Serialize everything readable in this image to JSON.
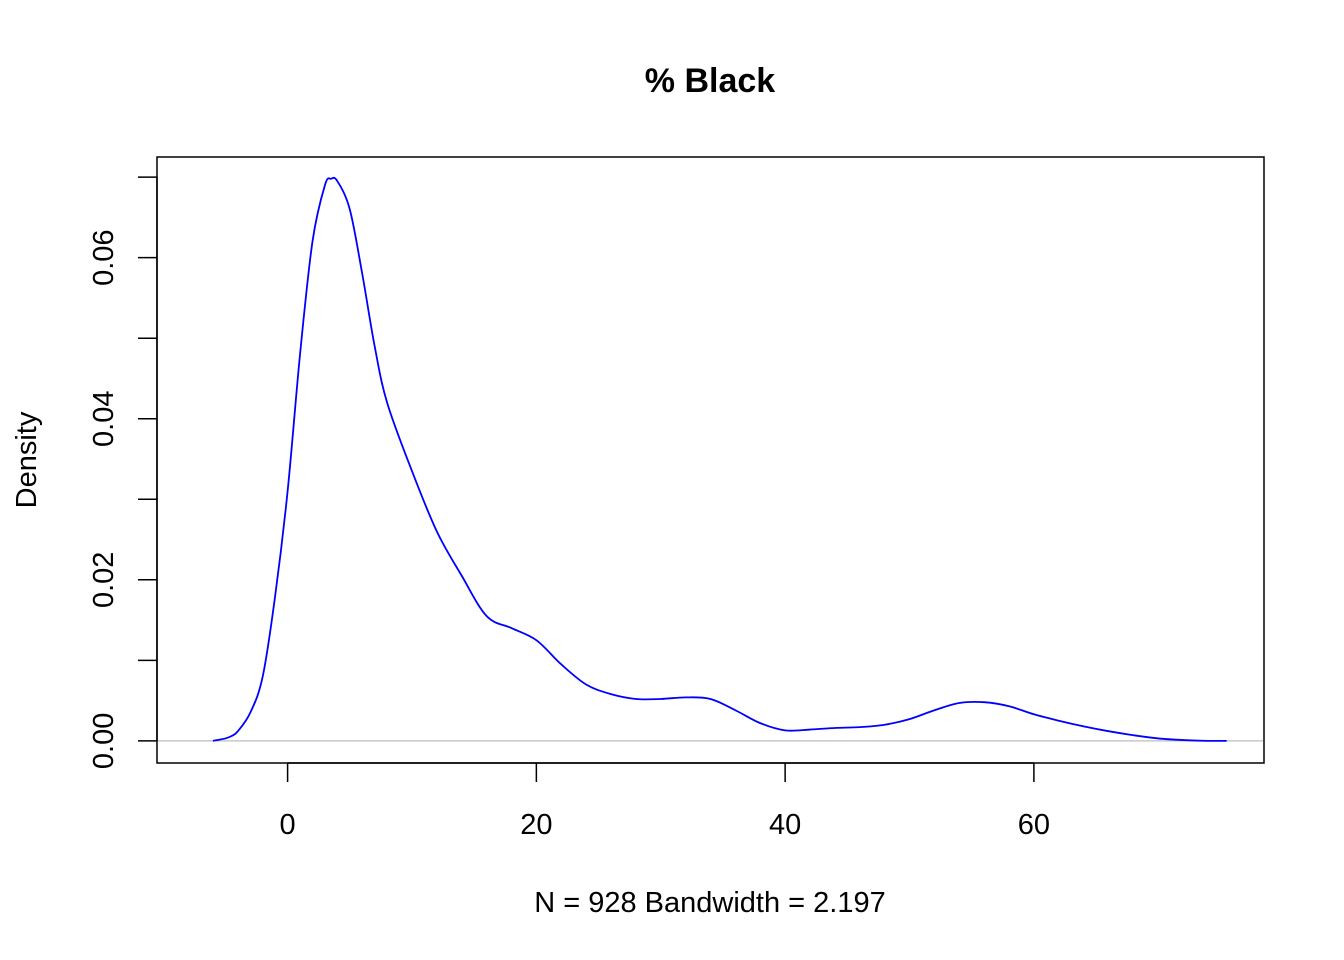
{
  "chart_data": {
    "type": "line",
    "title": "% Black",
    "xlabel": "N = 928   Bandwidth = 2.197",
    "ylabel": "Density",
    "xlim": [
      -10.5,
      78.5
    ],
    "ylim": [
      -0.00275,
      0.0725
    ],
    "x_ticks": [
      0,
      20,
      40,
      60
    ],
    "y_ticks": [
      0,
      0.01,
      0.02,
      0.03,
      0.04,
      0.05,
      0.06,
      0.07
    ],
    "y_tick_labels": [
      "0.00",
      "",
      "0.02",
      "",
      "0.04",
      "",
      "0.06",
      ""
    ],
    "x_tick_labels": [
      "0",
      "20",
      "40",
      "60"
    ],
    "grid": false,
    "colors": {
      "line": "#0000ff",
      "baseline": "#bebebe",
      "axes": "#000000"
    },
    "series": [
      {
        "x": [
          -6,
          -5,
          -4.5,
          -4,
          -3,
          -2,
          -1,
          0,
          1,
          2,
          3,
          3.5,
          4,
          5,
          6,
          7,
          8,
          10,
          12,
          14,
          16,
          18,
          20,
          22,
          24,
          26,
          28,
          30,
          32,
          34,
          36,
          38,
          40,
          42,
          44,
          46,
          48,
          50,
          52,
          54,
          56,
          58,
          60,
          62,
          64,
          66,
          68,
          70,
          72,
          74,
          75.5
        ],
        "y": [
          0.0,
          0.0003,
          0.0006,
          0.0012,
          0.0035,
          0.008,
          0.018,
          0.031,
          0.048,
          0.062,
          0.069,
          0.0698,
          0.0695,
          0.066,
          0.058,
          0.049,
          0.042,
          0.0335,
          0.026,
          0.0205,
          0.0155,
          0.014,
          0.0125,
          0.0095,
          0.007,
          0.0058,
          0.0052,
          0.0052,
          0.0054,
          0.0052,
          0.0038,
          0.0022,
          0.0013,
          0.0014,
          0.0016,
          0.0017,
          0.002,
          0.0027,
          0.0038,
          0.0047,
          0.0048,
          0.0043,
          0.0033,
          0.0025,
          0.0018,
          0.0012,
          0.0007,
          0.0003,
          0.0001,
          0.0,
          0.0
        ]
      }
    ]
  }
}
